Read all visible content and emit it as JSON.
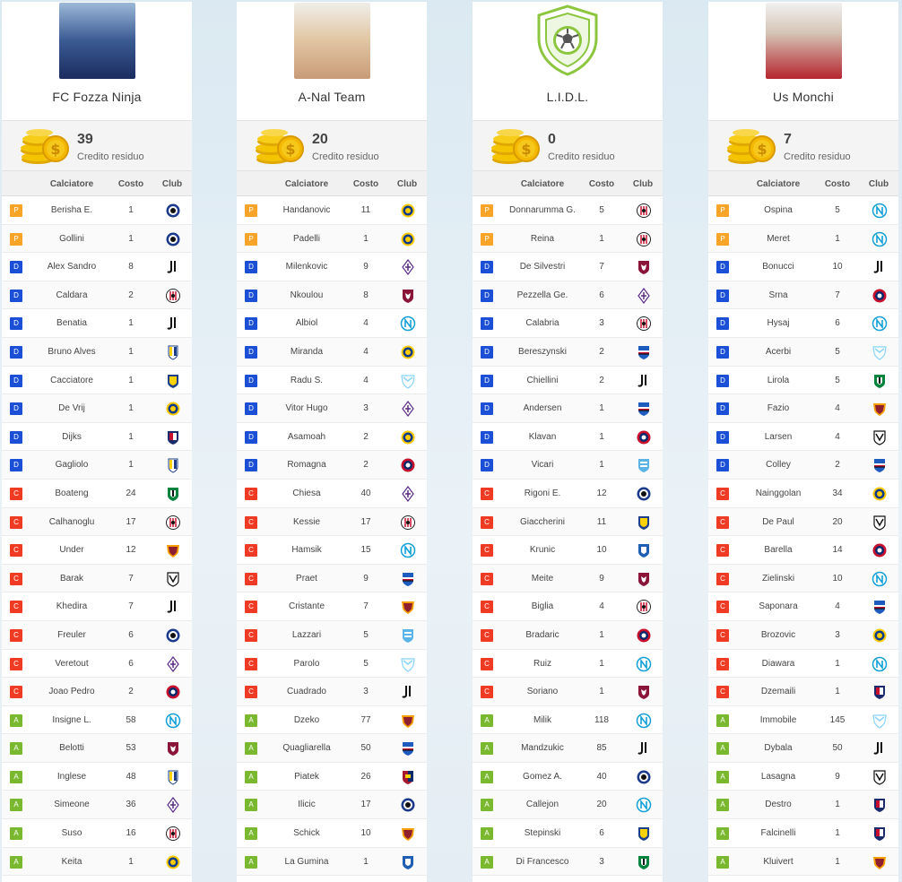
{
  "columns": {
    "player": "Calciatore",
    "cost": "Costo",
    "club": "Club"
  },
  "credit_label": "Credito residuo",
  "role_colors": {
    "P": "#f7a428",
    "D": "#1a4fd6",
    "C": "#ef3b23",
    "A": "#7ab82f"
  },
  "teams": [
    {
      "name": "FC Fozza Ninja",
      "avatar": "photo-avatar",
      "credit": "39",
      "players": [
        {
          "role": "P",
          "name": "Berisha E.",
          "cost": "1",
          "club": "atalanta"
        },
        {
          "role": "P",
          "name": "Gollini",
          "cost": "1",
          "club": "atalanta"
        },
        {
          "role": "D",
          "name": "Alex Sandro",
          "cost": "8",
          "club": "juventus"
        },
        {
          "role": "D",
          "name": "Caldara",
          "cost": "2",
          "club": "milan"
        },
        {
          "role": "D",
          "name": "Benatia",
          "cost": "1",
          "club": "juventus"
        },
        {
          "role": "D",
          "name": "Bruno Alves",
          "cost": "1",
          "club": "parma"
        },
        {
          "role": "D",
          "name": "Cacciatore",
          "cost": "1",
          "club": "chievo"
        },
        {
          "role": "D",
          "name": "De Vrij",
          "cost": "1",
          "club": "inter"
        },
        {
          "role": "D",
          "name": "Dijks",
          "cost": "1",
          "club": "bologna"
        },
        {
          "role": "D",
          "name": "Gagliolo",
          "cost": "1",
          "club": "parma"
        },
        {
          "role": "C",
          "name": "Boateng",
          "cost": "24",
          "club": "sassuolo"
        },
        {
          "role": "C",
          "name": "Calhanoglu",
          "cost": "17",
          "club": "milan"
        },
        {
          "role": "C",
          "name": "Under",
          "cost": "12",
          "club": "roma"
        },
        {
          "role": "C",
          "name": "Barak",
          "cost": "7",
          "club": "udinese"
        },
        {
          "role": "C",
          "name": "Khedira",
          "cost": "7",
          "club": "juventus"
        },
        {
          "role": "C",
          "name": "Freuler",
          "cost": "6",
          "club": "atalanta"
        },
        {
          "role": "C",
          "name": "Veretout",
          "cost": "6",
          "club": "fiorentina"
        },
        {
          "role": "C",
          "name": "Joao Pedro",
          "cost": "2",
          "club": "cagliari"
        },
        {
          "role": "A",
          "name": "Insigne L.",
          "cost": "58",
          "club": "napoli"
        },
        {
          "role": "A",
          "name": "Belotti",
          "cost": "53",
          "club": "torino"
        },
        {
          "role": "A",
          "name": "Inglese",
          "cost": "48",
          "club": "parma"
        },
        {
          "role": "A",
          "name": "Simeone",
          "cost": "36",
          "club": "fiorentina"
        },
        {
          "role": "A",
          "name": "Suso",
          "cost": "16",
          "club": "milan"
        },
        {
          "role": "A",
          "name": "Keita",
          "cost": "1",
          "club": "inter"
        }
      ]
    },
    {
      "name": "A-Nal Team",
      "avatar": "photo-avatar",
      "credit": "20",
      "players": [
        {
          "role": "P",
          "name": "Handanovic",
          "cost": "11",
          "club": "inter"
        },
        {
          "role": "P",
          "name": "Padelli",
          "cost": "1",
          "club": "inter"
        },
        {
          "role": "D",
          "name": "Milenkovic",
          "cost": "9",
          "club": "fiorentina"
        },
        {
          "role": "D",
          "name": "Nkoulou",
          "cost": "8",
          "club": "torino"
        },
        {
          "role": "D",
          "name": "Albiol",
          "cost": "4",
          "club": "napoli"
        },
        {
          "role": "D",
          "name": "Miranda",
          "cost": "4",
          "club": "inter"
        },
        {
          "role": "D",
          "name": "Radu S.",
          "cost": "4",
          "club": "lazio"
        },
        {
          "role": "D",
          "name": "Vitor Hugo",
          "cost": "3",
          "club": "fiorentina"
        },
        {
          "role": "D",
          "name": "Asamoah",
          "cost": "2",
          "club": "inter"
        },
        {
          "role": "D",
          "name": "Romagna",
          "cost": "2",
          "club": "cagliari"
        },
        {
          "role": "C",
          "name": "Chiesa",
          "cost": "40",
          "club": "fiorentina"
        },
        {
          "role": "C",
          "name": "Kessie",
          "cost": "17",
          "club": "milan"
        },
        {
          "role": "C",
          "name": "Hamsik",
          "cost": "15",
          "club": "napoli"
        },
        {
          "role": "C",
          "name": "Praet",
          "cost": "9",
          "club": "sampdoria"
        },
        {
          "role": "C",
          "name": "Cristante",
          "cost": "7",
          "club": "roma"
        },
        {
          "role": "C",
          "name": "Lazzari",
          "cost": "5",
          "club": "spal"
        },
        {
          "role": "C",
          "name": "Parolo",
          "cost": "5",
          "club": "lazio"
        },
        {
          "role": "C",
          "name": "Cuadrado",
          "cost": "3",
          "club": "juventus"
        },
        {
          "role": "A",
          "name": "Dzeko",
          "cost": "77",
          "club": "roma"
        },
        {
          "role": "A",
          "name": "Quagliarella",
          "cost": "50",
          "club": "sampdoria"
        },
        {
          "role": "A",
          "name": "Piatek",
          "cost": "26",
          "club": "genoa"
        },
        {
          "role": "A",
          "name": "Ilicic",
          "cost": "17",
          "club": "atalanta"
        },
        {
          "role": "A",
          "name": "Schick",
          "cost": "10",
          "club": "roma"
        },
        {
          "role": "A",
          "name": "La Gumina",
          "cost": "1",
          "club": "empoli"
        }
      ]
    },
    {
      "name": "L.I.D.L.",
      "avatar": "shield-ball-icon",
      "credit": "0",
      "players": [
        {
          "role": "P",
          "name": "Donnarumma G.",
          "cost": "5",
          "club": "milan"
        },
        {
          "role": "P",
          "name": "Reina",
          "cost": "1",
          "club": "milan"
        },
        {
          "role": "D",
          "name": "De Silvestri",
          "cost": "7",
          "club": "torino"
        },
        {
          "role": "D",
          "name": "Pezzella Ge.",
          "cost": "6",
          "club": "fiorentina"
        },
        {
          "role": "D",
          "name": "Calabria",
          "cost": "3",
          "club": "milan"
        },
        {
          "role": "D",
          "name": "Bereszynski",
          "cost": "2",
          "club": "sampdoria"
        },
        {
          "role": "D",
          "name": "Chiellini",
          "cost": "2",
          "club": "juventus"
        },
        {
          "role": "D",
          "name": "Andersen",
          "cost": "1",
          "club": "sampdoria"
        },
        {
          "role": "D",
          "name": "Klavan",
          "cost": "1",
          "club": "cagliari"
        },
        {
          "role": "D",
          "name": "Vicari",
          "cost": "1",
          "club": "spal"
        },
        {
          "role": "C",
          "name": "Rigoni E.",
          "cost": "12",
          "club": "atalanta"
        },
        {
          "role": "C",
          "name": "Giaccherini",
          "cost": "11",
          "club": "chievo"
        },
        {
          "role": "C",
          "name": "Krunic",
          "cost": "10",
          "club": "empoli"
        },
        {
          "role": "C",
          "name": "Meite",
          "cost": "9",
          "club": "torino"
        },
        {
          "role": "C",
          "name": "Biglia",
          "cost": "4",
          "club": "milan"
        },
        {
          "role": "C",
          "name": "Bradaric",
          "cost": "1",
          "club": "cagliari"
        },
        {
          "role": "C",
          "name": "Ruiz",
          "cost": "1",
          "club": "napoli"
        },
        {
          "role": "C",
          "name": "Soriano",
          "cost": "1",
          "club": "torino"
        },
        {
          "role": "A",
          "name": "Milik",
          "cost": "118",
          "club": "napoli"
        },
        {
          "role": "A",
          "name": "Mandzukic",
          "cost": "85",
          "club": "juventus"
        },
        {
          "role": "A",
          "name": "Gomez A.",
          "cost": "40",
          "club": "atalanta"
        },
        {
          "role": "A",
          "name": "Callejon",
          "cost": "20",
          "club": "napoli"
        },
        {
          "role": "A",
          "name": "Stepinski",
          "cost": "6",
          "club": "chievo"
        },
        {
          "role": "A",
          "name": "Di Francesco",
          "cost": "3",
          "club": "sassuolo"
        }
      ]
    },
    {
      "name": "Us Monchi",
      "avatar": "photo-avatar",
      "credit": "7",
      "players": [
        {
          "role": "P",
          "name": "Ospina",
          "cost": "5",
          "club": "napoli"
        },
        {
          "role": "P",
          "name": "Meret",
          "cost": "1",
          "club": "napoli"
        },
        {
          "role": "D",
          "name": "Bonucci",
          "cost": "10",
          "club": "juventus"
        },
        {
          "role": "D",
          "name": "Srna",
          "cost": "7",
          "club": "cagliari"
        },
        {
          "role": "D",
          "name": "Hysaj",
          "cost": "6",
          "club": "napoli"
        },
        {
          "role": "D",
          "name": "Acerbi",
          "cost": "5",
          "club": "lazio"
        },
        {
          "role": "D",
          "name": "Lirola",
          "cost": "5",
          "club": "sassuolo"
        },
        {
          "role": "D",
          "name": "Fazio",
          "cost": "4",
          "club": "roma"
        },
        {
          "role": "D",
          "name": "Larsen",
          "cost": "4",
          "club": "udinese"
        },
        {
          "role": "D",
          "name": "Colley",
          "cost": "2",
          "club": "sampdoria"
        },
        {
          "role": "C",
          "name": "Nainggolan",
          "cost": "34",
          "club": "inter"
        },
        {
          "role": "C",
          "name": "De Paul",
          "cost": "20",
          "club": "udinese"
        },
        {
          "role": "C",
          "name": "Barella",
          "cost": "14",
          "club": "cagliari"
        },
        {
          "role": "C",
          "name": "Zielinski",
          "cost": "10",
          "club": "napoli"
        },
        {
          "role": "C",
          "name": "Saponara",
          "cost": "4",
          "club": "sampdoria"
        },
        {
          "role": "C",
          "name": "Brozovic",
          "cost": "3",
          "club": "inter"
        },
        {
          "role": "C",
          "name": "Diawara",
          "cost": "1",
          "club": "napoli"
        },
        {
          "role": "C",
          "name": "Dzemaili",
          "cost": "1",
          "club": "bologna"
        },
        {
          "role": "A",
          "name": "Immobile",
          "cost": "145",
          "club": "lazio"
        },
        {
          "role": "A",
          "name": "Dybala",
          "cost": "50",
          "club": "juventus"
        },
        {
          "role": "A",
          "name": "Lasagna",
          "cost": "9",
          "club": "udinese"
        },
        {
          "role": "A",
          "name": "Destro",
          "cost": "1",
          "club": "bologna"
        },
        {
          "role": "A",
          "name": "Falcinelli",
          "cost": "1",
          "club": "bologna"
        },
        {
          "role": "A",
          "name": "Kluivert",
          "cost": "1",
          "club": "roma"
        }
      ]
    }
  ]
}
